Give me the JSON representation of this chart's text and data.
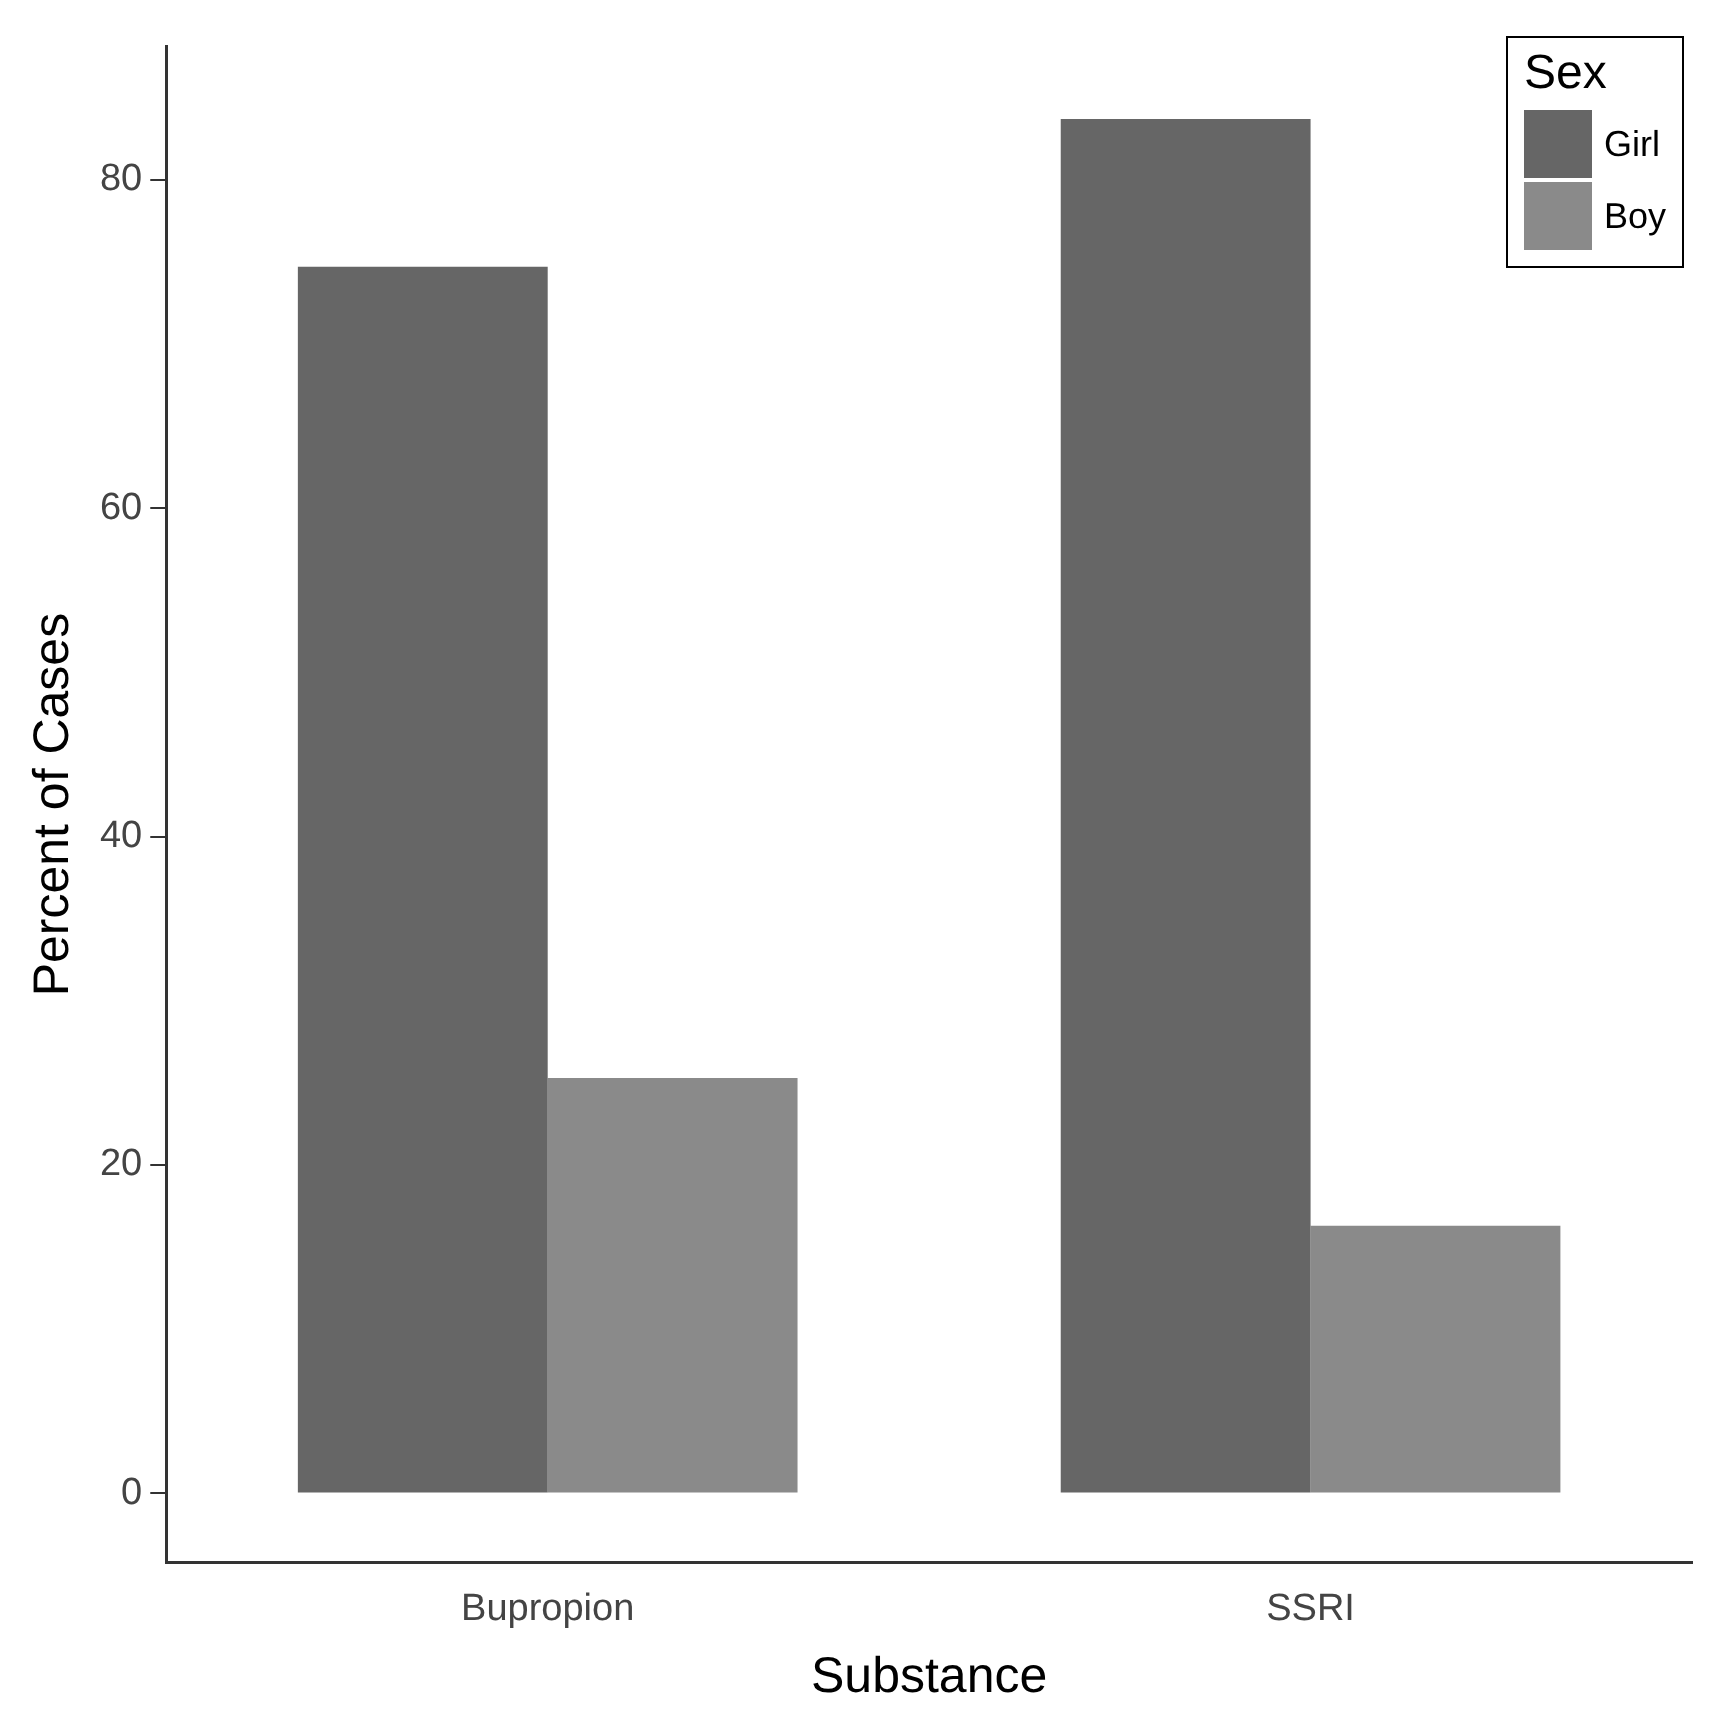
{
  "chart_data": {
    "type": "bar",
    "xlabel": "Substance",
    "ylabel": "Percent of Cases",
    "legend_title": "Sex",
    "categories": [
      "Bupropion",
      "SSRI"
    ],
    "series": [
      {
        "name": "Girl",
        "color": "#666666",
        "values": [
          74.7,
          83.7
        ]
      },
      {
        "name": "Boy",
        "color": "#8a8a8a",
        "values": [
          25.3,
          16.3
        ]
      }
    ],
    "ylim": [
      -4.2,
      88.1
    ],
    "yticks": [
      0,
      20,
      40,
      60,
      80
    ],
    "grid": false,
    "legend": "top right"
  }
}
